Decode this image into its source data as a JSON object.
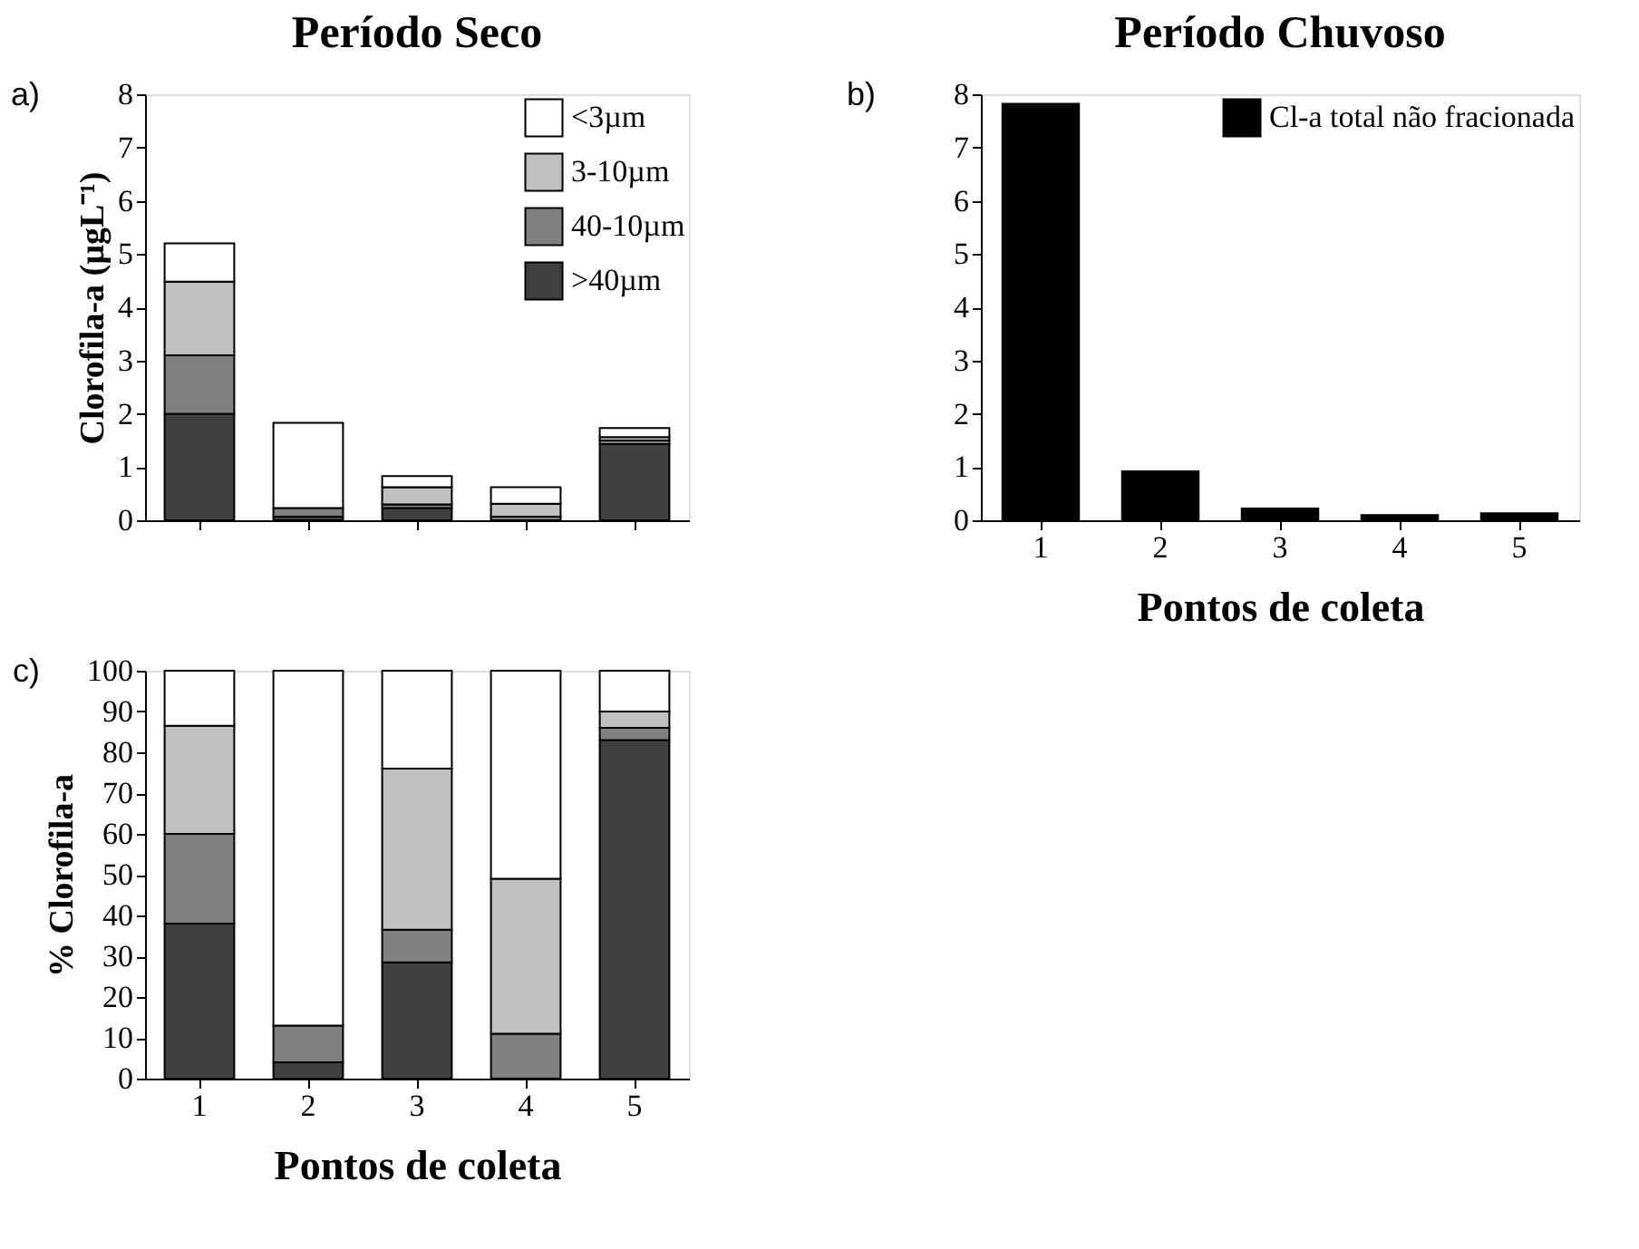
{
  "chart_data": [
    {
      "type": "bar",
      "stacked": true,
      "title": "Período Seco",
      "ylabel": "Clorofila-a (µgL⁻¹)",
      "annotations": [
        "a)"
      ],
      "categories": [
        "1",
        "2",
        "3",
        "4",
        "5"
      ],
      "tick_labels": "y",
      "ylim": [
        0,
        8
      ],
      "yticks": [
        0,
        1,
        2,
        3,
        4,
        5,
        6,
        7,
        8
      ],
      "legend": "top right",
      "series": [
        {
          "name": ">40µm",
          "color": "#404040",
          "values": [
            2.0,
            0.07,
            0.23,
            0.0,
            1.43
          ]
        },
        {
          "name": "40-10µm",
          "color": "#808080",
          "values": [
            1.1,
            0.16,
            0.07,
            0.07,
            0.07
          ]
        },
        {
          "name": "3-10µm",
          "color": "#c0c0c0",
          "values": [
            1.38,
            0.0,
            0.32,
            0.24,
            0.06
          ]
        },
        {
          "name": "<3µm",
          "color": "#ffffff",
          "values": [
            0.72,
            1.6,
            0.21,
            0.31,
            0.17
          ]
        }
      ]
    },
    {
      "type": "bar",
      "title": "Período Chuvoso",
      "xlabel": "Pontos de coleta",
      "annotations": [
        "b)"
      ],
      "categories": [
        "1",
        "2",
        "3",
        "4",
        "5"
      ],
      "ylim": [
        0,
        8
      ],
      "yticks": [
        0,
        1,
        2,
        3,
        4,
        5,
        6,
        7,
        8
      ],
      "legend": "top right",
      "series": [
        {
          "name": "Cl-a total não fracionada",
          "color": "#000000",
          "values": [
            7.82,
            0.92,
            0.22,
            0.1,
            0.13
          ]
        }
      ]
    },
    {
      "type": "bar",
      "stacked": true,
      "xlabel": "Pontos de coleta",
      "ylabel": "% Clorofila-a",
      "annotations": [
        "c)"
      ],
      "categories": [
        "1",
        "2",
        "3",
        "4",
        "5"
      ],
      "ylim": [
        0,
        100
      ],
      "yticks": [
        0,
        10,
        20,
        30,
        40,
        50,
        60,
        70,
        80,
        90,
        100
      ],
      "series": [
        {
          "color": "#404040",
          "values": [
            38,
            4,
            28.5,
            0,
            83
          ]
        },
        {
          "color": "#808080",
          "values": [
            22,
            9,
            8,
            11,
            3
          ]
        },
        {
          "color": "#c0c0c0",
          "values": [
            26.5,
            0,
            39.5,
            38,
            4
          ]
        },
        {
          "color": "#ffffff",
          "values": [
            13.5,
            87,
            24,
            51,
            10
          ]
        }
      ]
    }
  ]
}
